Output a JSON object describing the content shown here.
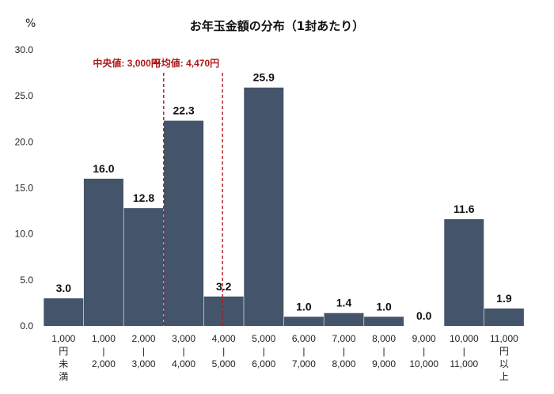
{
  "chart_data": {
    "type": "bar",
    "title": "お年玉金額の分布（1封あたり）",
    "ylabel": "%",
    "ylim": [
      0,
      30
    ],
    "yticks": [
      "0.0",
      "5.0",
      "10.0",
      "15.0",
      "20.0",
      "25.0",
      "30.0"
    ],
    "categories": [
      [
        "1,000",
        "円",
        "未",
        "満"
      ],
      [
        "1,000",
        "|",
        "2,000"
      ],
      [
        "2,000",
        "|",
        "3,000"
      ],
      [
        "3,000",
        "|",
        "4,000"
      ],
      [
        "4,000",
        "|",
        "5,000"
      ],
      [
        "5,000",
        "|",
        "6,000"
      ],
      [
        "6,000",
        "|",
        "7,000"
      ],
      [
        "7,000",
        "|",
        "8,000"
      ],
      [
        "8,000",
        "|",
        "9,000"
      ],
      [
        "9,000",
        "|",
        "10,000"
      ],
      [
        "10,000",
        "|",
        "11,000"
      ],
      [
        "11,000",
        "円",
        "以",
        "上"
      ]
    ],
    "values": [
      3.0,
      16.0,
      12.8,
      22.3,
      3.2,
      25.9,
      1.0,
      1.4,
      1.0,
      0.0,
      11.6,
      1.9
    ],
    "value_labels": [
      "3.0",
      "16.0",
      "12.8",
      "22.3",
      "3.2",
      "25.9",
      "1.0",
      "1.4",
      "1.0",
      "0.0",
      "11.6",
      "1.9"
    ],
    "bar_color": "#44546a",
    "annotation_color": "#b01818",
    "annotations": [
      {
        "label": "中央値: 3,000円",
        "x": 3000
      },
      {
        "label": "平均値: 4,470円",
        "x": 4470
      }
    ],
    "grid": false,
    "legend": "none"
  }
}
